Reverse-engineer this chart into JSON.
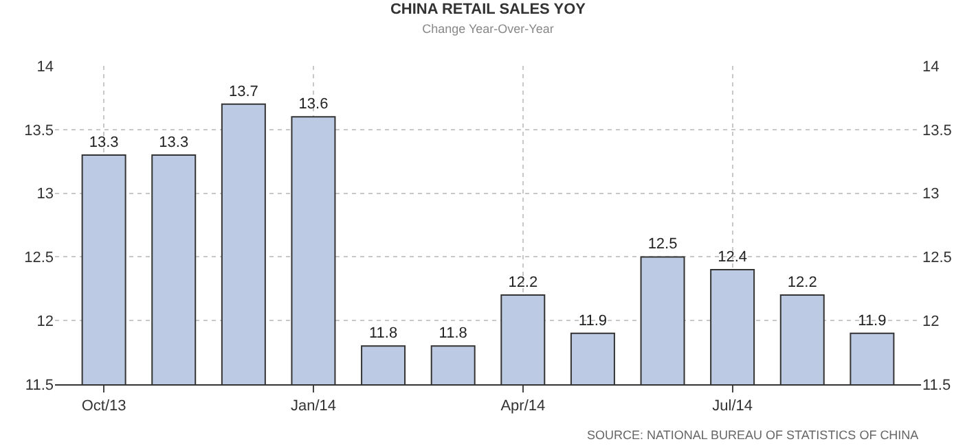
{
  "chart_data": {
    "type": "bar",
    "title": "CHINA RETAIL SALES YOY",
    "subtitle": "Change Year-Over-Year",
    "categories": [
      "Oct/13",
      null,
      null,
      "Jan/14",
      null,
      null,
      "Apr/14",
      null,
      null,
      "Jul/14",
      null,
      null
    ],
    "values": [
      13.3,
      13.3,
      13.7,
      13.6,
      11.8,
      11.8,
      12.2,
      11.9,
      12.5,
      12.4,
      12.2,
      11.9
    ],
    "color": "#bccbe3",
    "data_labels": true,
    "ylim": [
      11.5,
      14
    ],
    "yticks": [
      11.5,
      12,
      12.5,
      13,
      13.5,
      14
    ],
    "y2lim": [
      11.5,
      14
    ],
    "y2ticks": [
      11.5,
      12,
      12.5,
      13,
      13.5,
      14
    ],
    "grid": true,
    "annotations": [
      "SOURCE: NATIONAL BUREAU OF STATISTICS OF CHINA"
    ]
  }
}
